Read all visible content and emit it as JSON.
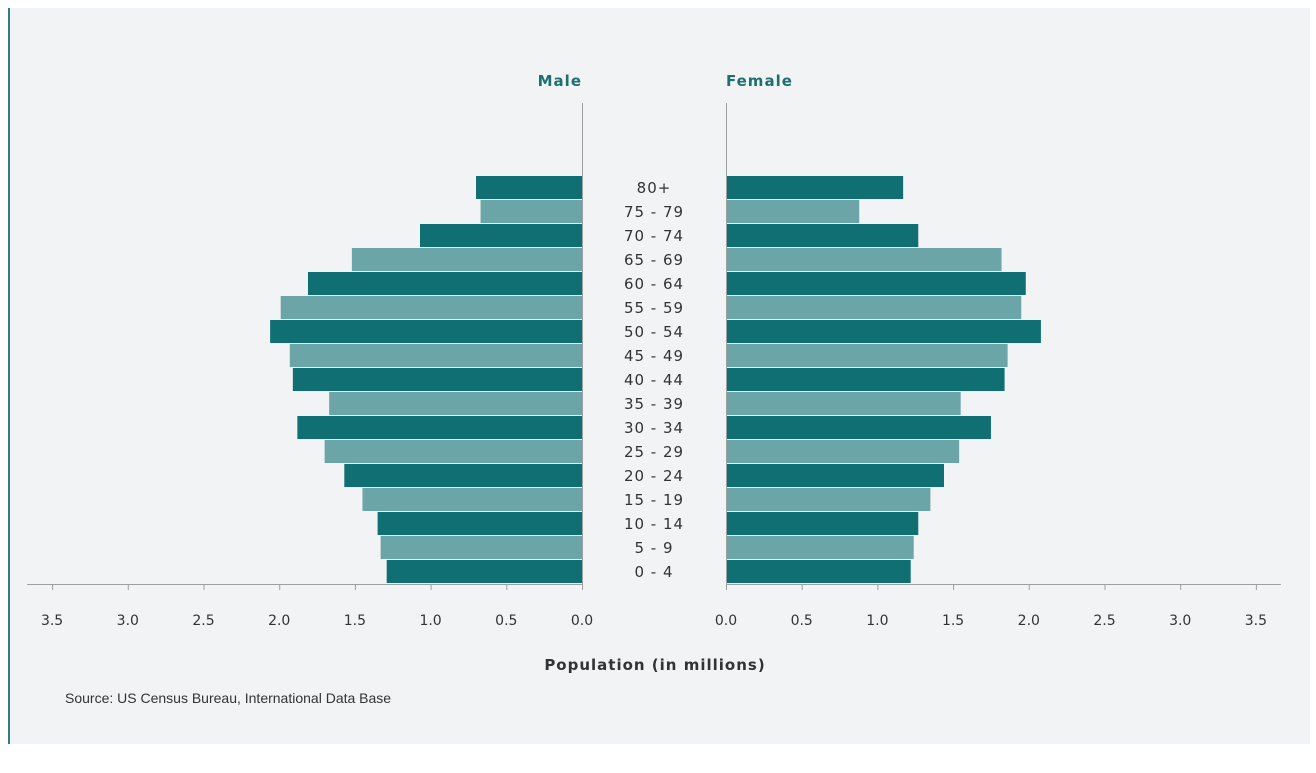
{
  "chart_data": {
    "type": "bar",
    "categories": [
      "80+",
      "75 - 79",
      "70 - 74",
      "65 - 69",
      "60 - 64",
      "55 - 59",
      "50 - 54",
      "45 - 49",
      "40 - 44",
      "35 - 39",
      "30 - 34",
      "25 - 29",
      "20 - 24",
      "15 - 19",
      "10 - 14",
      "5 - 9",
      "0 - 4"
    ],
    "series": [
      {
        "name": "Male",
        "values": [
          0.7,
          0.67,
          1.07,
          1.52,
          1.81,
          1.99,
          2.06,
          1.93,
          1.91,
          1.67,
          1.88,
          1.7,
          1.57,
          1.45,
          1.35,
          1.33,
          1.29
        ]
      },
      {
        "name": "Female",
        "values": [
          1.17,
          0.88,
          1.27,
          1.82,
          1.98,
          1.95,
          2.08,
          1.86,
          1.84,
          1.55,
          1.75,
          1.54,
          1.44,
          1.35,
          1.27,
          1.24,
          1.22
        ]
      }
    ],
    "xticks": [
      "3.5",
      "3.0",
      "2.5",
      "2.0",
      "1.5",
      "1.0",
      "0.5",
      "0.0"
    ],
    "xlabel": "Population (in millions)",
    "xlim": [
      0,
      3.5
    ],
    "orientation": "horizontal",
    "layout": "population-pyramid",
    "grid": false,
    "colors": {
      "dark": "#0f6f72",
      "light": "#6ca5a7",
      "label": "#1d6f70"
    }
  },
  "source": "Source: US Census Bureau, International Data Base"
}
